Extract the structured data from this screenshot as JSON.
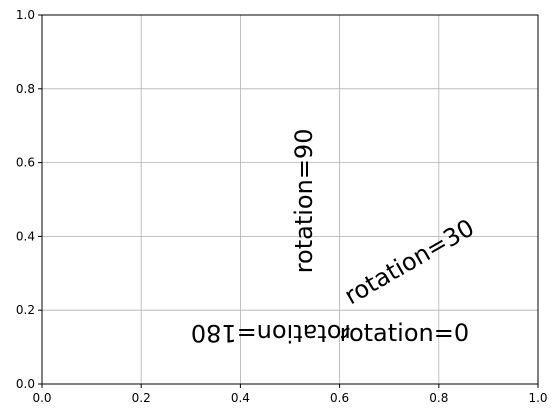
{
  "chart_data": {
    "type": "scatter",
    "title": "",
    "xlabel": "",
    "ylabel": "",
    "xlim": [
      0,
      1
    ],
    "ylim": [
      0,
      1
    ],
    "grid": true,
    "x_ticks": [
      {
        "value": 0.0,
        "label": "0.0"
      },
      {
        "value": 0.2,
        "label": "0.2"
      },
      {
        "value": 0.4,
        "label": "0.4"
      },
      {
        "value": 0.6,
        "label": "0.6"
      },
      {
        "value": 0.8,
        "label": "0.8"
      },
      {
        "value": 1.0,
        "label": "1.0"
      }
    ],
    "y_ticks": [
      {
        "value": 0.0,
        "label": "0.0"
      },
      {
        "value": 0.2,
        "label": "0.2"
      },
      {
        "value": 0.4,
        "label": "0.4"
      },
      {
        "value": 0.6,
        "label": "0.6"
      },
      {
        "value": 0.8,
        "label": "0.8"
      },
      {
        "value": 1.0,
        "label": "1.0"
      }
    ],
    "annotations": [
      {
        "text": "rotation=0",
        "x": 0.6,
        "y": 0.1,
        "rotation": 0
      },
      {
        "text": "rotation=30",
        "x": 0.6,
        "y": 0.2,
        "rotation": 30
      },
      {
        "text": "rotation=90",
        "x": 0.5,
        "y": 0.3,
        "rotation": 90
      },
      {
        "text": "rotation=180",
        "x": 0.3,
        "y": 0.1,
        "rotation": 180
      }
    ]
  }
}
